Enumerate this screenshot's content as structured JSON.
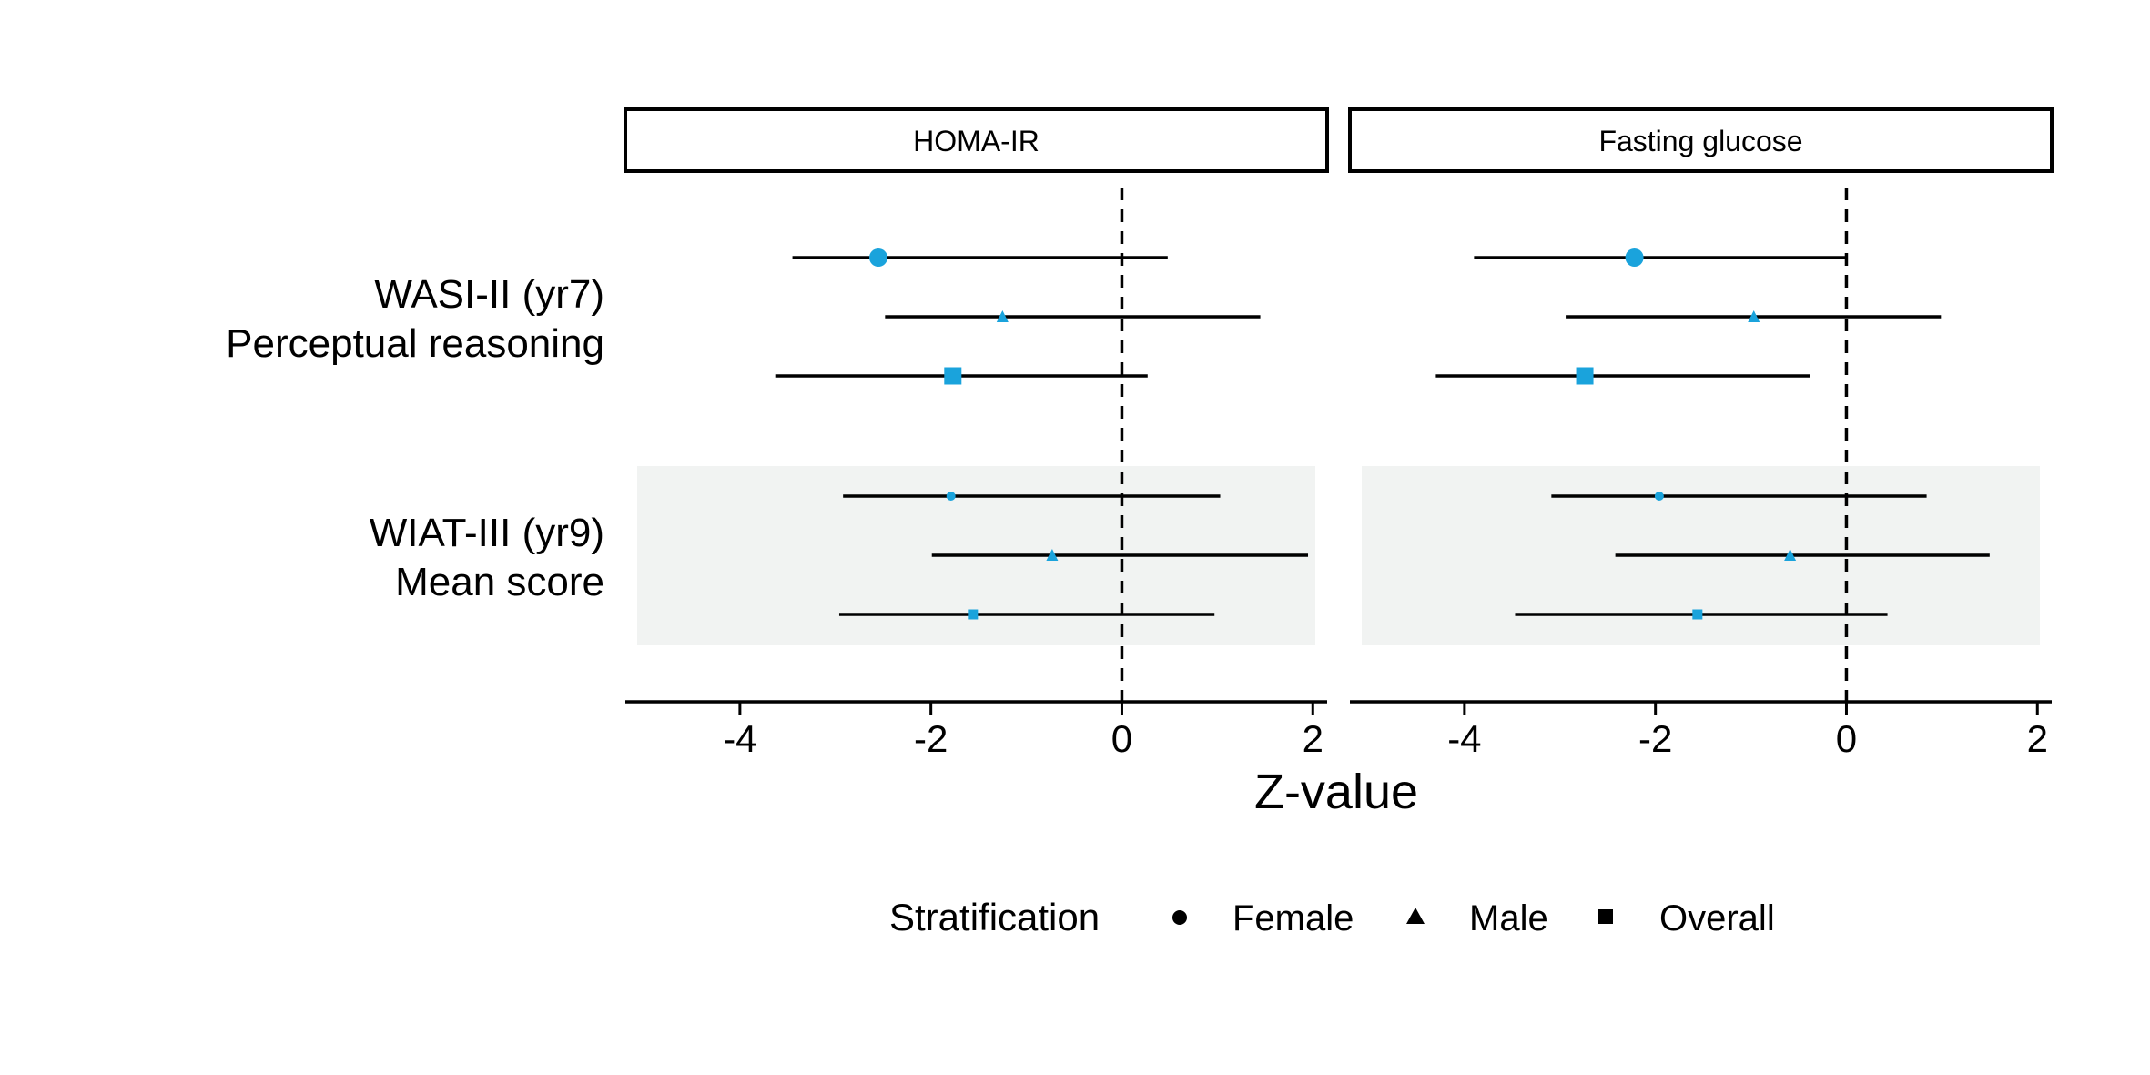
{
  "chart_data": {
    "type": "forest",
    "xlabel": "Z-value",
    "xlim": [
      -5.2,
      2.15
    ],
    "xticks": [
      -4,
      -2,
      0,
      2
    ],
    "xtick_labels": [
      "-4",
      "-2",
      "0",
      "2"
    ],
    "reference_line": 0,
    "panels": [
      {
        "title": "HOMA-IR"
      },
      {
        "title": "Fasting glucose"
      }
    ],
    "groups": [
      {
        "line1": "WASI-II (yr7)",
        "line2": "Perceptual reasoning",
        "shaded": false
      },
      {
        "line1": "WIAT-III (yr9)",
        "line2": "Mean score",
        "shaded": true
      }
    ],
    "strata": [
      "Female",
      "Male",
      "Overall"
    ],
    "legend_title": "Stratification",
    "legend_position": "bottom",
    "point_color": "#1aa3dc",
    "shade_color": "#f1f3f2",
    "rows": [
      {
        "panel": 0,
        "group": 0,
        "stratum": "Female",
        "estimate": -2.55,
        "low": -3.45,
        "high": 0.48,
        "size": "large"
      },
      {
        "panel": 0,
        "group": 0,
        "stratum": "Male",
        "estimate": -1.25,
        "low": -2.48,
        "high": 1.45,
        "size": "small"
      },
      {
        "panel": 0,
        "group": 0,
        "stratum": "Overall",
        "estimate": -1.77,
        "low": -3.63,
        "high": 0.27,
        "size": "large"
      },
      {
        "panel": 0,
        "group": 1,
        "stratum": "Female",
        "estimate": -1.79,
        "low": -2.92,
        "high": 1.03,
        "size": "small"
      },
      {
        "panel": 0,
        "group": 1,
        "stratum": "Male",
        "estimate": -0.73,
        "low": -1.99,
        "high": 1.95,
        "size": "small"
      },
      {
        "panel": 0,
        "group": 1,
        "stratum": "Overall",
        "estimate": -1.56,
        "low": -2.96,
        "high": 0.97,
        "size": "small"
      },
      {
        "panel": 1,
        "group": 0,
        "stratum": "Female",
        "estimate": -2.22,
        "low": -3.9,
        "high": 0.0,
        "size": "large"
      },
      {
        "panel": 1,
        "group": 0,
        "stratum": "Male",
        "estimate": -0.97,
        "low": -2.94,
        "high": 0.99,
        "size": "small"
      },
      {
        "panel": 1,
        "group": 0,
        "stratum": "Overall",
        "estimate": -2.74,
        "low": -4.3,
        "high": -0.38,
        "size": "large"
      },
      {
        "panel": 1,
        "group": 1,
        "stratum": "Female",
        "estimate": -1.96,
        "low": -3.09,
        "high": 0.84,
        "size": "small"
      },
      {
        "panel": 1,
        "group": 1,
        "stratum": "Male",
        "estimate": -0.59,
        "low": -2.42,
        "high": 1.5,
        "size": "small"
      },
      {
        "panel": 1,
        "group": 1,
        "stratum": "Overall",
        "estimate": -1.56,
        "low": -3.47,
        "high": 0.43,
        "size": "small"
      }
    ]
  }
}
